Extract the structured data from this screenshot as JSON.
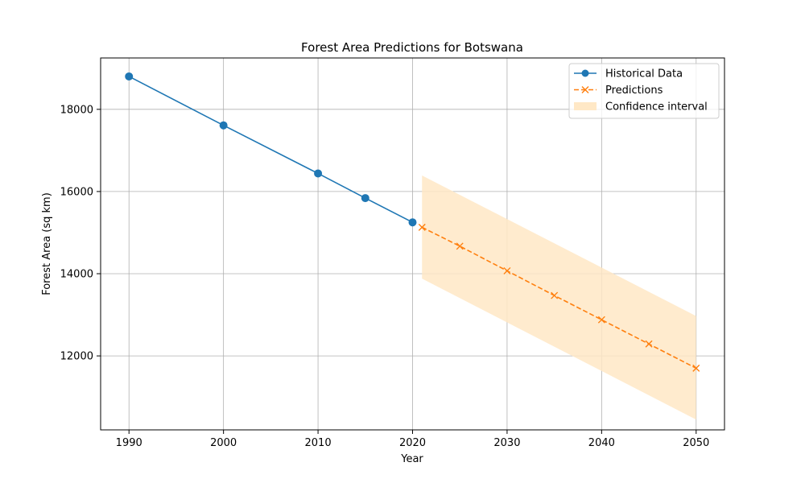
{
  "chart_data": {
    "type": "line",
    "title": "Forest Area Predictions for Botswana",
    "xlabel": "Year",
    "ylabel": "Forest Area (sq km)",
    "xlim": [
      1987,
      2053
    ],
    "ylim": [
      10200,
      19250
    ],
    "xticks": [
      1990,
      2000,
      2010,
      2020,
      2030,
      2040,
      2050
    ],
    "yticks": [
      12000,
      14000,
      16000,
      18000
    ],
    "grid": true,
    "legend_position": "top-right",
    "series": [
      {
        "name": "Historical Data",
        "style": "solid",
        "marker": "circle",
        "color": "#1f77b4",
        "x": [
          1990,
          2000,
          2010,
          2015,
          2020
        ],
        "y": [
          18800,
          17610,
          16440,
          15840,
          15250
        ]
      },
      {
        "name": "Predictions",
        "style": "dashed",
        "marker": "x",
        "color": "#ff7f0e",
        "x": [
          2021,
          2025,
          2030,
          2035,
          2040,
          2045,
          2050
        ],
        "y": [
          15130,
          14670,
          14070,
          13470,
          12880,
          12290,
          11700
        ]
      }
    ],
    "confidence_interval": {
      "name": "Confidence interval",
      "color": "#ffe8c6",
      "x": [
        2021,
        2050
      ],
      "lower": [
        13880,
        10450
      ],
      "upper": [
        16390,
        12970
      ]
    }
  }
}
